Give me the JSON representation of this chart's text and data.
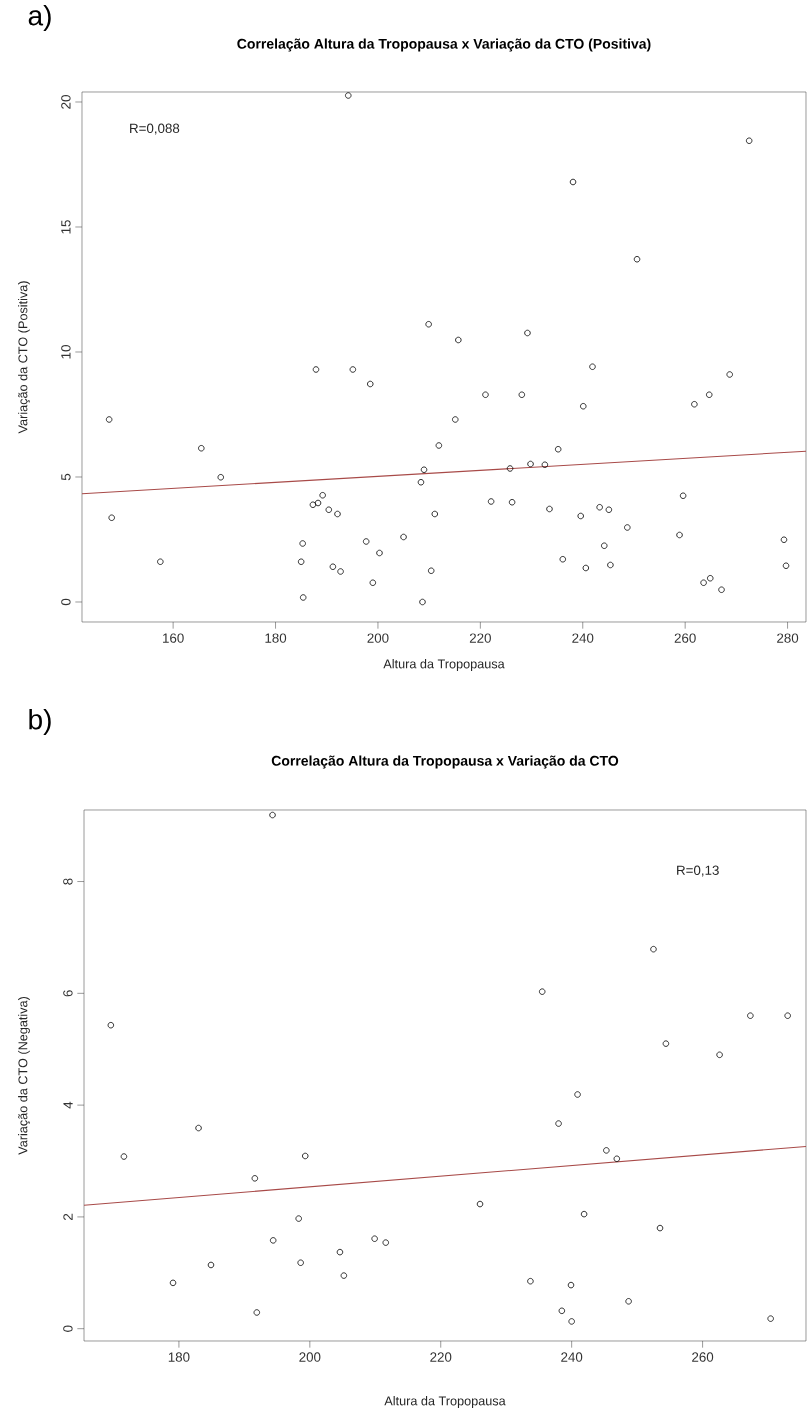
{
  "chart_data": [
    {
      "type": "scatter",
      "title": "Correlação Altura da Tropopausa x Variação da CTO (Positiva)",
      "xlabel": "Altura da Tropopausa",
      "ylabel": "Variação da CTO (Positiva)",
      "annotations": [
        "a)",
        "R=0,088"
      ],
      "xlim": [
        142.2,
        283.6
      ],
      "ylim": [
        -0.8,
        20.4
      ],
      "xticks": [
        160,
        180,
        200,
        220,
        240,
        260,
        280
      ],
      "yticks": [
        0,
        5,
        10,
        15,
        20
      ],
      "grid": false,
      "series": [
        {
          "marker": "circle",
          "color": "#000000",
          "x": [
            147.5,
            148.0,
            157.5,
            165.5,
            169.3,
            187.9,
            195.1,
            198.5,
            194.2,
            189.2,
            187.3,
            188.3,
            190.4,
            192.1,
            185.3,
            185.0,
            185.4,
            197.7,
            200.3,
            191.2,
            192.7,
            199.0,
            205.0,
            209.9,
            215.7,
            209.0,
            208.4,
            211.9,
            211.1,
            210.4,
            208.7,
            215.1,
            221.0,
            228.1,
            229.2,
            222.1,
            226.2,
            225.8,
            229.8,
            232.6,
            235.2,
            233.5,
            238.1,
            240.1,
            241.9,
            250.6,
            236.1,
            239.6,
            240.6,
            243.3,
            245.1,
            244.2,
            245.4,
            248.7,
            258.9,
            259.6,
            261.8,
            264.7,
            268.7,
            272.5,
            263.6,
            264.9,
            267.1,
            279.3,
            279.7
          ],
          "values": [
            7.3,
            3.37,
            1.61,
            6.15,
            4.99,
            9.3,
            9.3,
            8.72,
            20.26,
            4.27,
            3.89,
            3.96,
            3.69,
            3.52,
            2.34,
            1.61,
            0.18,
            2.42,
            1.96,
            1.41,
            1.22,
            0.77,
            2.6,
            11.11,
            10.48,
            5.29,
            4.79,
            6.26,
            3.52,
            1.25,
            0.0,
            7.3,
            8.29,
            8.29,
            10.76,
            4.02,
            3.99,
            5.34,
            5.52,
            5.49,
            6.11,
            3.72,
            16.8,
            7.83,
            9.41,
            13.71,
            1.71,
            3.44,
            1.36,
            3.79,
            3.69,
            2.25,
            1.48,
            2.98,
            2.68,
            4.25,
            7.91,
            8.29,
            9.1,
            18.45,
            0.77,
            0.95,
            0.49,
            2.49,
            1.45
          ]
        },
        {
          "type": "line",
          "color": "#a84a48",
          "x": [
            142.2,
            283.6
          ],
          "values": [
            4.33,
            6.03
          ]
        }
      ]
    },
    {
      "type": "scatter",
      "title": "Correlação Altura da Tropopausa x Variação da CTO",
      "xlabel": "Altura da Tropopausa",
      "ylabel": "Variação da CTO (Negativa)",
      "annotations": [
        "b)",
        "R=0,13"
      ],
      "xlim": [
        165.5,
        275.8
      ],
      "ylim": [
        -0.22,
        9.28
      ],
      "xticks": [
        180,
        200,
        220,
        240,
        260
      ],
      "yticks": [
        0,
        2,
        4,
        6,
        8
      ],
      "grid": false,
      "series": [
        {
          "marker": "circle",
          "color": "#000000",
          "x": [
            194.3,
            169.6,
            171.6,
            183.0,
            199.3,
            191.6,
            198.3,
            194.4,
            198.6,
            184.9,
            179.1,
            191.9,
            204.6,
            205.2,
            209.9,
            211.6,
            252.5,
            235.5,
            267.3,
            273.0,
            254.4,
            262.6,
            240.9,
            238.0,
            245.3,
            246.9,
            226.0,
            241.9,
            253.5,
            233.7,
            239.9,
            238.5,
            240.0,
            248.7,
            270.4
          ],
          "values": [
            9.19,
            5.43,
            3.08,
            3.59,
            3.09,
            2.69,
            1.97,
            1.58,
            1.18,
            1.14,
            0.82,
            0.29,
            1.37,
            0.95,
            1.61,
            1.54,
            6.79,
            6.03,
            5.6,
            5.6,
            5.1,
            4.9,
            4.19,
            3.67,
            3.19,
            3.04,
            2.23,
            2.05,
            1.8,
            0.85,
            0.78,
            0.32,
            0.13,
            0.49,
            0.18
          ]
        },
        {
          "type": "line",
          "color": "#a84a48",
          "x": [
            165.5,
            275.8
          ],
          "values": [
            2.21,
            3.26
          ]
        }
      ]
    }
  ]
}
